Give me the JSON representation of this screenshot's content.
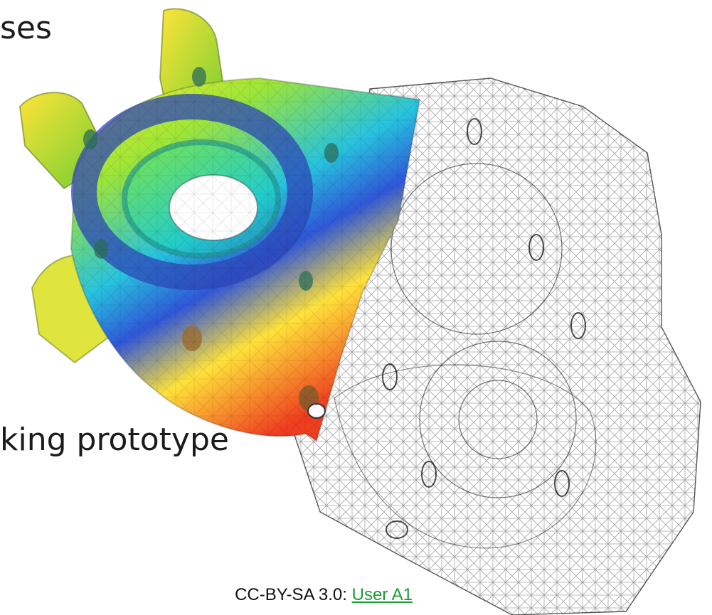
{
  "slide": {
    "text_top": "ses",
    "text_bottom": "king prototype",
    "credit_prefix": "CC-BY-SA 3.0:",
    "credit_link": "User A1"
  },
  "figure": {
    "icon": "cad-mesh-icon"
  }
}
